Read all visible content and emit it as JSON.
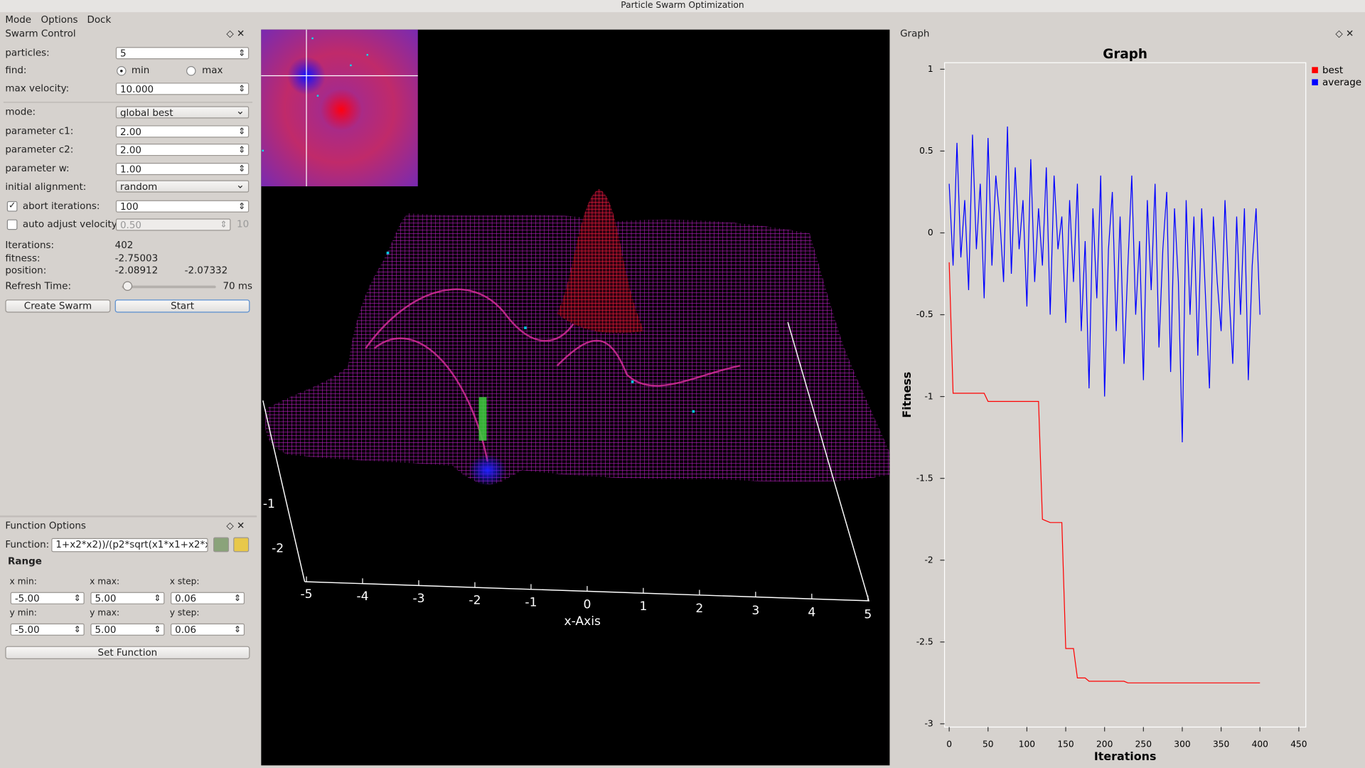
{
  "window": {
    "title": "Particle Swarm Optimization",
    "menu": [
      "Mode",
      "Options",
      "Dock"
    ]
  },
  "swarm_control": {
    "title": "Swarm Control",
    "particles_label": "particles:",
    "particles": "5",
    "find_label": "find:",
    "find_min": "min",
    "find_max": "max",
    "max_velocity_label": "max velocity:",
    "max_velocity": "10.000",
    "mode_label": "mode:",
    "mode": "global best",
    "c1_label": "parameter c1:",
    "c1": "2.00",
    "c2_label": "parameter c2:",
    "c2": "2.00",
    "w_label": "parameter w:",
    "w": "1.00",
    "alignment_label": "initial alignment:",
    "alignment": "random",
    "abort_label": "abort iterations:",
    "abort": "100",
    "auto_label": "auto adjust velocity:",
    "auto": "0.50",
    "auto_extra": "10",
    "iterations_label": "Iterations:",
    "iterations": "402",
    "fitness_label": "fitness:",
    "fitness": "-2.75003",
    "position_label": "position:",
    "position_x": "-2.08912",
    "position_y": "-2.07332",
    "refresh_label": "Refresh Time:",
    "refresh": "70 ms",
    "create_button": "Create Swarm",
    "start_button": "Start"
  },
  "function_options": {
    "title": "Function Options",
    "function_label": "Function:",
    "function": "1+x2*x2))/(p2*sqrt(x1*x1+x2*x2))",
    "range_title": "Range",
    "x_min_label": "x min:",
    "x_min": "-5.00",
    "x_max_label": "x max:",
    "x_max": "5.00",
    "x_step_label": "x step:",
    "x_step": "0.06",
    "y_min_label": "y min:",
    "y_min": "-5.00",
    "y_max_label": "y max:",
    "y_max": "5.00",
    "y_step_label": "y step:",
    "y_step": "0.06",
    "set_button": "Set Function"
  },
  "view3d": {
    "x_tick_labels": [
      "-5",
      "-4",
      "-3",
      "-2",
      "-1",
      "0",
      "1",
      "2",
      "3",
      "4",
      "5"
    ],
    "x_axis_label": "x-Axis",
    "y_tick_labels": [
      "-1",
      "-2"
    ]
  },
  "graph_panel": {
    "title": "Graph"
  },
  "chart_data": {
    "type": "line",
    "title": "Graph",
    "x_label": "Iterations",
    "y_label": "Fitness",
    "x": [
      0,
      5,
      10,
      15,
      20,
      25,
      30,
      35,
      40,
      45,
      50,
      55,
      60,
      65,
      70,
      75,
      80,
      85,
      90,
      95,
      100,
      105,
      110,
      115,
      120,
      125,
      130,
      135,
      140,
      145,
      150,
      155,
      160,
      165,
      170,
      175,
      180,
      185,
      190,
      195,
      200,
      205,
      210,
      215,
      220,
      225,
      230,
      235,
      240,
      245,
      250,
      255,
      260,
      265,
      270,
      275,
      280,
      285,
      290,
      295,
      300,
      305,
      310,
      315,
      320,
      325,
      330,
      335,
      340,
      345,
      350,
      355,
      360,
      365,
      370,
      375,
      380,
      385,
      390,
      395,
      400
    ],
    "series": [
      {
        "name": "best",
        "color": "#ff0000",
        "values": [
          -0.18,
          -0.98,
          -0.98,
          -0.98,
          -0.98,
          -0.98,
          -0.98,
          -0.98,
          -0.98,
          -0.98,
          -1.03,
          -1.03,
          -1.03,
          -1.03,
          -1.03,
          -1.03,
          -1.03,
          -1.03,
          -1.03,
          -1.03,
          -1.03,
          -1.03,
          -1.03,
          -1.03,
          -1.75,
          -1.76,
          -1.77,
          -1.77,
          -1.77,
          -1.77,
          -2.54,
          -2.54,
          -2.54,
          -2.72,
          -2.72,
          -2.72,
          -2.74,
          -2.74,
          -2.74,
          -2.74,
          -2.74,
          -2.74,
          -2.74,
          -2.74,
          -2.74,
          -2.74,
          -2.75,
          -2.75,
          -2.75,
          -2.75,
          -2.75,
          -2.75,
          -2.75,
          -2.75,
          -2.75,
          -2.75,
          -2.75,
          -2.75,
          -2.75,
          -2.75,
          -2.75,
          -2.75,
          -2.75,
          -2.75,
          -2.75,
          -2.75,
          -2.75,
          -2.75,
          -2.75,
          -2.75,
          -2.75,
          -2.75,
          -2.75,
          -2.75,
          -2.75,
          -2.75,
          -2.75,
          -2.75,
          -2.75,
          -2.75,
          -2.75
        ]
      },
      {
        "name": "average",
        "color": "#0000ff",
        "values": [
          0.3,
          -0.2,
          0.55,
          -0.15,
          0.2,
          -0.35,
          0.6,
          -0.1,
          0.3,
          -0.4,
          0.58,
          -0.2,
          0.35,
          0.1,
          -0.3,
          0.65,
          -0.25,
          0.4,
          -0.1,
          0.2,
          -0.45,
          0.45,
          -0.3,
          0.15,
          -0.2,
          0.4,
          -0.5,
          0.35,
          -0.1,
          0.1,
          -0.55,
          0.2,
          -0.3,
          0.3,
          -0.6,
          -0.05,
          -0.95,
          0.15,
          -0.4,
          0.35,
          -1.0,
          -0.1,
          0.25,
          -0.6,
          0.1,
          -0.8,
          -0.2,
          0.35,
          -0.5,
          -0.05,
          -0.9,
          0.2,
          -0.35,
          0.3,
          -0.7,
          -0.1,
          0.25,
          -0.85,
          0.15,
          -0.3,
          -1.28,
          0.2,
          -0.5,
          0.1,
          -0.75,
          0.15,
          -0.4,
          -0.95,
          0.1,
          -0.3,
          -0.6,
          0.2,
          -0.35,
          -0.8,
          0.1,
          -0.5,
          0.15,
          -0.9,
          -0.2,
          0.15,
          -0.5
        ]
      }
    ],
    "xlim": [
      -6,
      459
    ],
    "ylim": [
      -3.02,
      1.04
    ],
    "xticks": [
      0,
      50,
      100,
      150,
      200,
      250,
      300,
      350,
      400,
      450
    ],
    "yticks": [
      1,
      0.5,
      0,
      -0.5,
      -1,
      -1.5,
      -2,
      -2.5,
      -3
    ],
    "legend": "right"
  }
}
